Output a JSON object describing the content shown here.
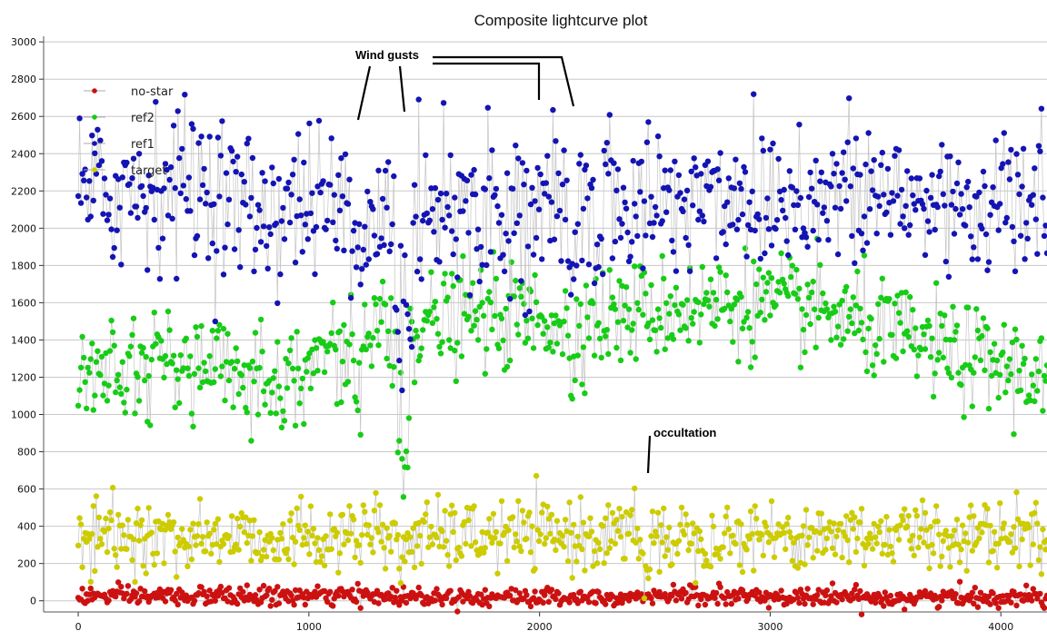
{
  "chart_data": {
    "type": "scatter",
    "title": "Composite lightcurve plot",
    "xlabel": "",
    "ylabel": "",
    "xlim": [
      -150,
      4200
    ],
    "ylim": [
      -60,
      3030
    ],
    "x_ticks": [
      0,
      1000,
      2000,
      3000,
      4000
    ],
    "y_ticks": [
      0,
      200,
      400,
      600,
      800,
      1000,
      1200,
      1400,
      1600,
      1800,
      2000,
      2200,
      2400,
      2600,
      2800,
      3000
    ],
    "grid": "horizontal",
    "legend_position": "top-left",
    "connected_lines": true,
    "series": [
      {
        "name": "no-star",
        "color": "#cc1111",
        "mean_profile": [
          [
            0,
            25
          ],
          [
            500,
            25
          ],
          [
            1000,
            25
          ],
          [
            1500,
            25
          ],
          [
            2000,
            20
          ],
          [
            2500,
            25
          ],
          [
            3000,
            20
          ],
          [
            3500,
            18
          ],
          [
            4200,
            20
          ]
        ],
        "noise": 25,
        "dips": [
          [
            2465,
            15,
            -15
          ]
        ]
      },
      {
        "name": "ref2",
        "color": "#17cc17",
        "mean_profile": [
          [
            0,
            1280
          ],
          [
            300,
            1290
          ],
          [
            600,
            1240
          ],
          [
            900,
            1200
          ],
          [
            1100,
            1330
          ],
          [
            1300,
            1460
          ],
          [
            1500,
            1480
          ],
          [
            1700,
            1520
          ],
          [
            2000,
            1520
          ],
          [
            2300,
            1520
          ],
          [
            2600,
            1580
          ],
          [
            2900,
            1600
          ],
          [
            3200,
            1560
          ],
          [
            3500,
            1440
          ],
          [
            3800,
            1320
          ],
          [
            4200,
            1200
          ]
        ],
        "noise": 135,
        "dips": [
          [
            1410,
            30,
            830
          ],
          [
            1210,
            25,
            300
          ],
          [
            2140,
            20,
            300
          ]
        ]
      },
      {
        "name": "ref1",
        "color": "#1414b4",
        "mean_profile": [
          [
            0,
            2150
          ],
          [
            300,
            2230
          ],
          [
            500,
            2250
          ],
          [
            800,
            2080
          ],
          [
            1000,
            2150
          ],
          [
            1200,
            2070
          ],
          [
            1400,
            2090
          ],
          [
            1600,
            2150
          ],
          [
            2000,
            2080
          ],
          [
            2400,
            2120
          ],
          [
            2800,
            2180
          ],
          [
            3200,
            2180
          ],
          [
            3600,
            2150
          ],
          [
            4200,
            2120
          ]
        ],
        "noise": 210,
        "dips": [
          [
            1410,
            40,
            800
          ],
          [
            1210,
            30,
            300
          ],
          [
            2140,
            25,
            450
          ]
        ]
      },
      {
        "name": "target",
        "color": "#cccc00",
        "mean_profile": [
          [
            0,
            340
          ],
          [
            1000,
            340
          ],
          [
            2000,
            350
          ],
          [
            3000,
            350
          ],
          [
            4200,
            360
          ]
        ],
        "noise": 90,
        "dips": [
          [
            2465,
            15,
            330
          ],
          [
            1410,
            15,
            150
          ]
        ]
      }
    ],
    "annotations": [
      {
        "text": "Wind gusts"
      },
      {
        "text": "occultation"
      }
    ]
  }
}
